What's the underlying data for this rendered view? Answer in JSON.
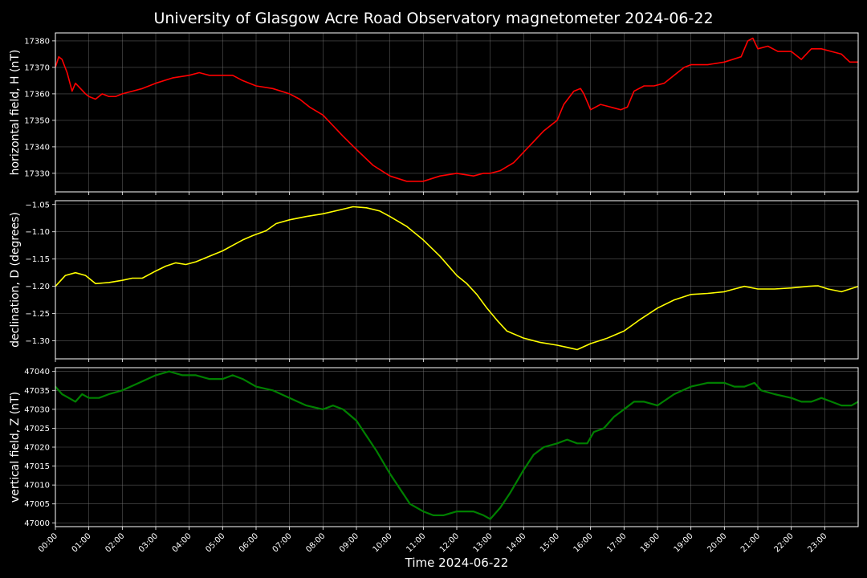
{
  "title": "University of Glasgow Acre Road Observatory magnetometer 2024-06-22",
  "xlabel": "Time 2024-06-22",
  "background": "#000000",
  "grid_color": "#7a7a7a",
  "x_ticks": [
    "00:00",
    "01:00",
    "02:00",
    "03:00",
    "04:00",
    "05:00",
    "06:00",
    "07:00",
    "08:00",
    "09:00",
    "10:00",
    "11:00",
    "12:00",
    "13:00",
    "14:00",
    "15:00",
    "16:00",
    "17:00",
    "18:00",
    "19:00",
    "20:00",
    "21:00",
    "22:00",
    "23:00"
  ],
  "chart_data": [
    {
      "type": "line",
      "ylabel": "horizontal field, H (nT)",
      "color": "#ff0000",
      "xlim": [
        0,
        24
      ],
      "ylim": [
        17323,
        17383
      ],
      "y_ticks": [
        17330,
        17340,
        17350,
        17360,
        17370,
        17380
      ],
      "grid": true,
      "x_hours": [
        0,
        0.1,
        0.2,
        0.35,
        0.5,
        0.6,
        0.75,
        0.9,
        1.0,
        1.2,
        1.4,
        1.6,
        1.8,
        2.0,
        2.3,
        2.6,
        3.0,
        3.5,
        4.0,
        4.3,
        4.6,
        5.0,
        5.3,
        5.6,
        6.0,
        6.5,
        7.0,
        7.3,
        7.6,
        8.0,
        8.3,
        8.6,
        9.0,
        9.5,
        10.0,
        10.5,
        11.0,
        11.5,
        12.0,
        12.5,
        12.8,
        13.0,
        13.3,
        13.7,
        14.0,
        14.3,
        14.6,
        15.0,
        15.2,
        15.5,
        15.7,
        15.8,
        16.0,
        16.3,
        16.6,
        16.9,
        17.1,
        17.3,
        17.6,
        17.9,
        18.2,
        18.5,
        18.8,
        19.0,
        19.5,
        20.0,
        20.5,
        20.7,
        20.85,
        21.0,
        21.3,
        21.6,
        22.0,
        22.3,
        22.6,
        22.9,
        23.2,
        23.5,
        23.75,
        23.9,
        24.0
      ],
      "values": [
        17370,
        17374,
        17373,
        17368,
        17361,
        17364,
        17362,
        17360,
        17359,
        17358,
        17360,
        17359,
        17359,
        17360,
        17361,
        17362,
        17364,
        17366,
        17367,
        17368,
        17367,
        17367,
        17367,
        17365,
        17363,
        17362,
        17360,
        17358,
        17355,
        17352,
        17348,
        17344,
        17339,
        17333,
        17329,
        17327,
        17327,
        17329,
        17330,
        17329,
        17330,
        17330,
        17331,
        17334,
        17338,
        17342,
        17346,
        17350,
        17356,
        17361,
        17362,
        17360,
        17354,
        17356,
        17355,
        17354,
        17355,
        17361,
        17363,
        17363,
        17364,
        17367,
        17370,
        17371,
        17371,
        17372,
        17374,
        17380,
        17381,
        17377,
        17378,
        17376,
        17376,
        17373,
        17377,
        17377,
        17376,
        17375,
        17372,
        17372,
        17372
      ]
    },
    {
      "type": "line",
      "ylabel": "declination, D (degrees)",
      "color": "#ffff00",
      "xlim": [
        0,
        24
      ],
      "ylim": [
        -1.333,
        -1.043
      ],
      "y_ticks": [
        -1.05,
        -1.1,
        -1.15,
        -1.2,
        -1.25,
        -1.3
      ],
      "y_tick_labels": [
        "−1.05",
        "−1.10",
        "−1.15",
        "−1.20",
        "−1.25",
        "−1.30"
      ],
      "grid": true,
      "x_hours": [
        0,
        0.3,
        0.6,
        0.9,
        1.2,
        1.6,
        2.0,
        2.3,
        2.6,
        3.0,
        3.3,
        3.6,
        3.9,
        4.2,
        4.6,
        5.0,
        5.3,
        5.6,
        5.9,
        6.3,
        6.6,
        7.0,
        7.5,
        8.0,
        8.5,
        8.9,
        9.3,
        9.7,
        10.0,
        10.5,
        11.0,
        11.5,
        12.0,
        12.3,
        12.6,
        12.9,
        13.2,
        13.5,
        14.0,
        14.5,
        15.0,
        15.3,
        15.6,
        16.0,
        16.5,
        17.0,
        17.5,
        18.0,
        18.5,
        19.0,
        19.5,
        20.0,
        20.3,
        20.6,
        21.0,
        21.5,
        22.0,
        22.5,
        22.8,
        23.1,
        23.5,
        24.0
      ],
      "values": [
        -1.2,
        -1.18,
        -1.175,
        -1.18,
        -1.195,
        -1.193,
        -1.189,
        -1.185,
        -1.185,
        -1.172,
        -1.163,
        -1.157,
        -1.16,
        -1.155,
        -1.145,
        -1.135,
        -1.125,
        -1.115,
        -1.107,
        -1.098,
        -1.085,
        -1.078,
        -1.072,
        -1.067,
        -1.06,
        -1.054,
        -1.056,
        -1.062,
        -1.072,
        -1.09,
        -1.115,
        -1.145,
        -1.18,
        -1.195,
        -1.215,
        -1.24,
        -1.262,
        -1.282,
        -1.295,
        -1.303,
        -1.308,
        -1.312,
        -1.316,
        -1.305,
        -1.295,
        -1.282,
        -1.26,
        -1.24,
        -1.225,
        -1.215,
        -1.213,
        -1.21,
        -1.205,
        -1.2,
        -1.205,
        -1.205,
        -1.203,
        -1.2,
        -1.199,
        -1.205,
        -1.21,
        -1.2
      ]
    },
    {
      "type": "line",
      "ylabel": "vertical field, Z (nT)",
      "color": "#008000",
      "xlim": [
        0,
        24
      ],
      "ylim": [
        46999,
        47041
      ],
      "y_ticks": [
        47000,
        47005,
        47010,
        47015,
        47020,
        47025,
        47030,
        47035,
        47040
      ],
      "grid": true,
      "x_hours": [
        0,
        0.2,
        0.4,
        0.6,
        0.8,
        1.0,
        1.3,
        1.6,
        2.0,
        2.5,
        3.0,
        3.4,
        3.8,
        4.2,
        4.6,
        5.0,
        5.3,
        5.6,
        6.0,
        6.5,
        7.0,
        7.5,
        8.0,
        8.3,
        8.6,
        9.0,
        9.3,
        9.6,
        10.0,
        10.3,
        10.6,
        11.0,
        11.3,
        11.6,
        12.0,
        12.5,
        12.8,
        13.0,
        13.3,
        13.6,
        14.0,
        14.3,
        14.6,
        15.0,
        15.3,
        15.6,
        15.9,
        16.1,
        16.4,
        16.7,
        17.0,
        17.3,
        17.6,
        18.0,
        18.5,
        19.0,
        19.5,
        20.0,
        20.3,
        20.6,
        20.9,
        21.1,
        21.5,
        22.0,
        22.3,
        22.6,
        22.9,
        23.2,
        23.5,
        23.8,
        24.0
      ],
      "values": [
        47036,
        47034,
        47033,
        47032,
        47034,
        47033,
        47033,
        47034,
        47035,
        47037,
        47039,
        47040,
        47039,
        47039,
        47038,
        47038,
        47039,
        47038,
        47036,
        47035,
        47033,
        47031,
        47030,
        47031,
        47030,
        47027,
        47023,
        47019,
        47013,
        47009,
        47005,
        47003,
        47002,
        47002,
        47003,
        47003,
        47002,
        47001,
        47004,
        47008,
        47014,
        47018,
        47020,
        47021,
        47022,
        47021,
        47021,
        47024,
        47025,
        47028,
        47030,
        47032,
        47032,
        47031,
        47034,
        47036,
        47037,
        47037,
        47036,
        47036,
        47037,
        47035,
        47034,
        47033,
        47032,
        47032,
        47033,
        47032,
        47031,
        47031,
        47032
      ]
    }
  ]
}
